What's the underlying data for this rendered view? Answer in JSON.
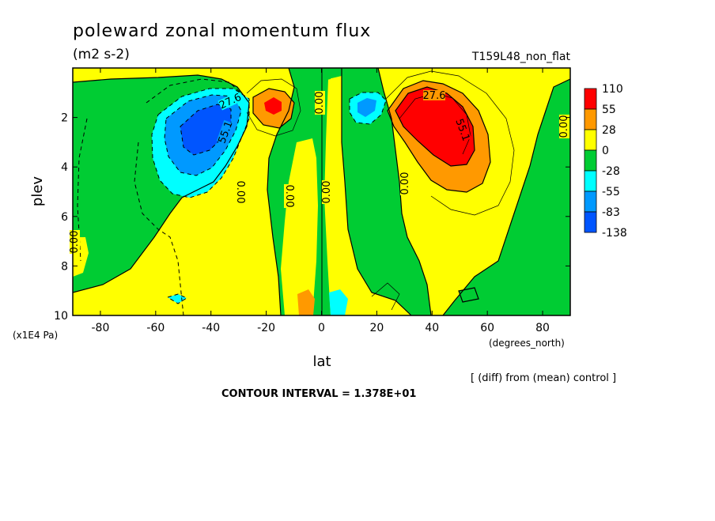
{
  "chart_data": {
    "type": "heatmap",
    "title": "poleward zonal momentum flux",
    "units": "(m2 s-2)",
    "run_label": "T159L48_non_flat",
    "xlabel": "lat",
    "x_units": "(degrees_north)",
    "ylabel": "plev",
    "y_units": "(x1E4 Pa)",
    "xlim": [
      -90,
      90
    ],
    "ylim": [
      10,
      0
    ],
    "x_ticks": [
      -80,
      -60,
      -40,
      -20,
      0,
      20,
      40,
      60,
      80
    ],
    "y_ticks": [
      2,
      4,
      6,
      8,
      10
    ],
    "contour_interval_text": "CONTOUR INTERVAL = 1.378E+01",
    "diff_note": "[ (diff) from (mean) control ]",
    "colorbar": {
      "levels": [
        "110",
        "55",
        "28",
        "0",
        "-28",
        "-55",
        "-83",
        "-138"
      ],
      "colors": [
        "#ff0000",
        "#ff9900",
        "#ffff00",
        "#00cc33",
        "#00ffff",
        "#0099ff",
        "#0055ff"
      ]
    },
    "contour_labels": [
      "27.6",
      "55.1",
      "27.6",
      "55.1",
      "0.00",
      "0.00",
      "0.00",
      "0.00",
      "0.00",
      "0.00",
      "0.00"
    ],
    "features": [
      {
        "name": "nh-jet-maximum",
        "lat": 42,
        "plev": 2.8,
        "value": 110
      },
      {
        "name": "sh-jet-minimum",
        "lat": -45,
        "plev": 2.8,
        "value": -110
      },
      {
        "name": "sh-upper-positive",
        "lat": -18,
        "plev": 1.5,
        "value": 70
      },
      {
        "name": "nh-upper-negative",
        "lat": 18,
        "plev": 1.5,
        "value": -55
      },
      {
        "name": "equatorial-low-positive",
        "lat": -5,
        "plev": 9.5,
        "value": 40
      },
      {
        "name": "equatorial-low-negative",
        "lat": 6,
        "plev": 9.6,
        "value": -30
      }
    ]
  }
}
